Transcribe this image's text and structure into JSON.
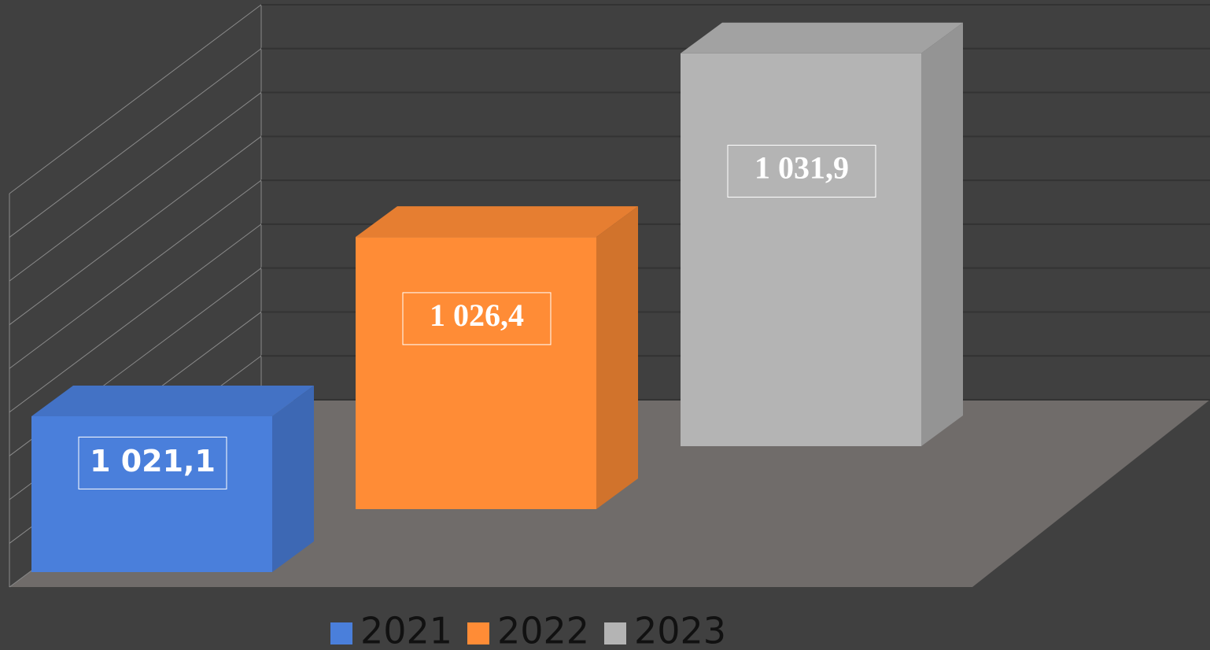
{
  "chart_data": {
    "type": "bar3d",
    "series": [
      {
        "name": "2021",
        "color": "#4a7fdb",
        "values": [
          1021.1
        ],
        "value_labels": [
          "1 021,1"
        ]
      },
      {
        "name": "2022",
        "color": "#ff8c36",
        "values": [
          1026.4
        ],
        "value_labels": [
          "1 026,4"
        ]
      },
      {
        "name": "2023",
        "color": "#b4b4b4",
        "values": [
          1031.9
        ],
        "value_labels": [
          "1 031,9"
        ]
      }
    ],
    "ylim": [
      1014,
      1032
    ],
    "yticks": [
      1014,
      1016,
      1018,
      1020,
      1022,
      1024,
      1026,
      1028,
      1030,
      1032
    ],
    "grid": true,
    "legend": "bottom"
  }
}
